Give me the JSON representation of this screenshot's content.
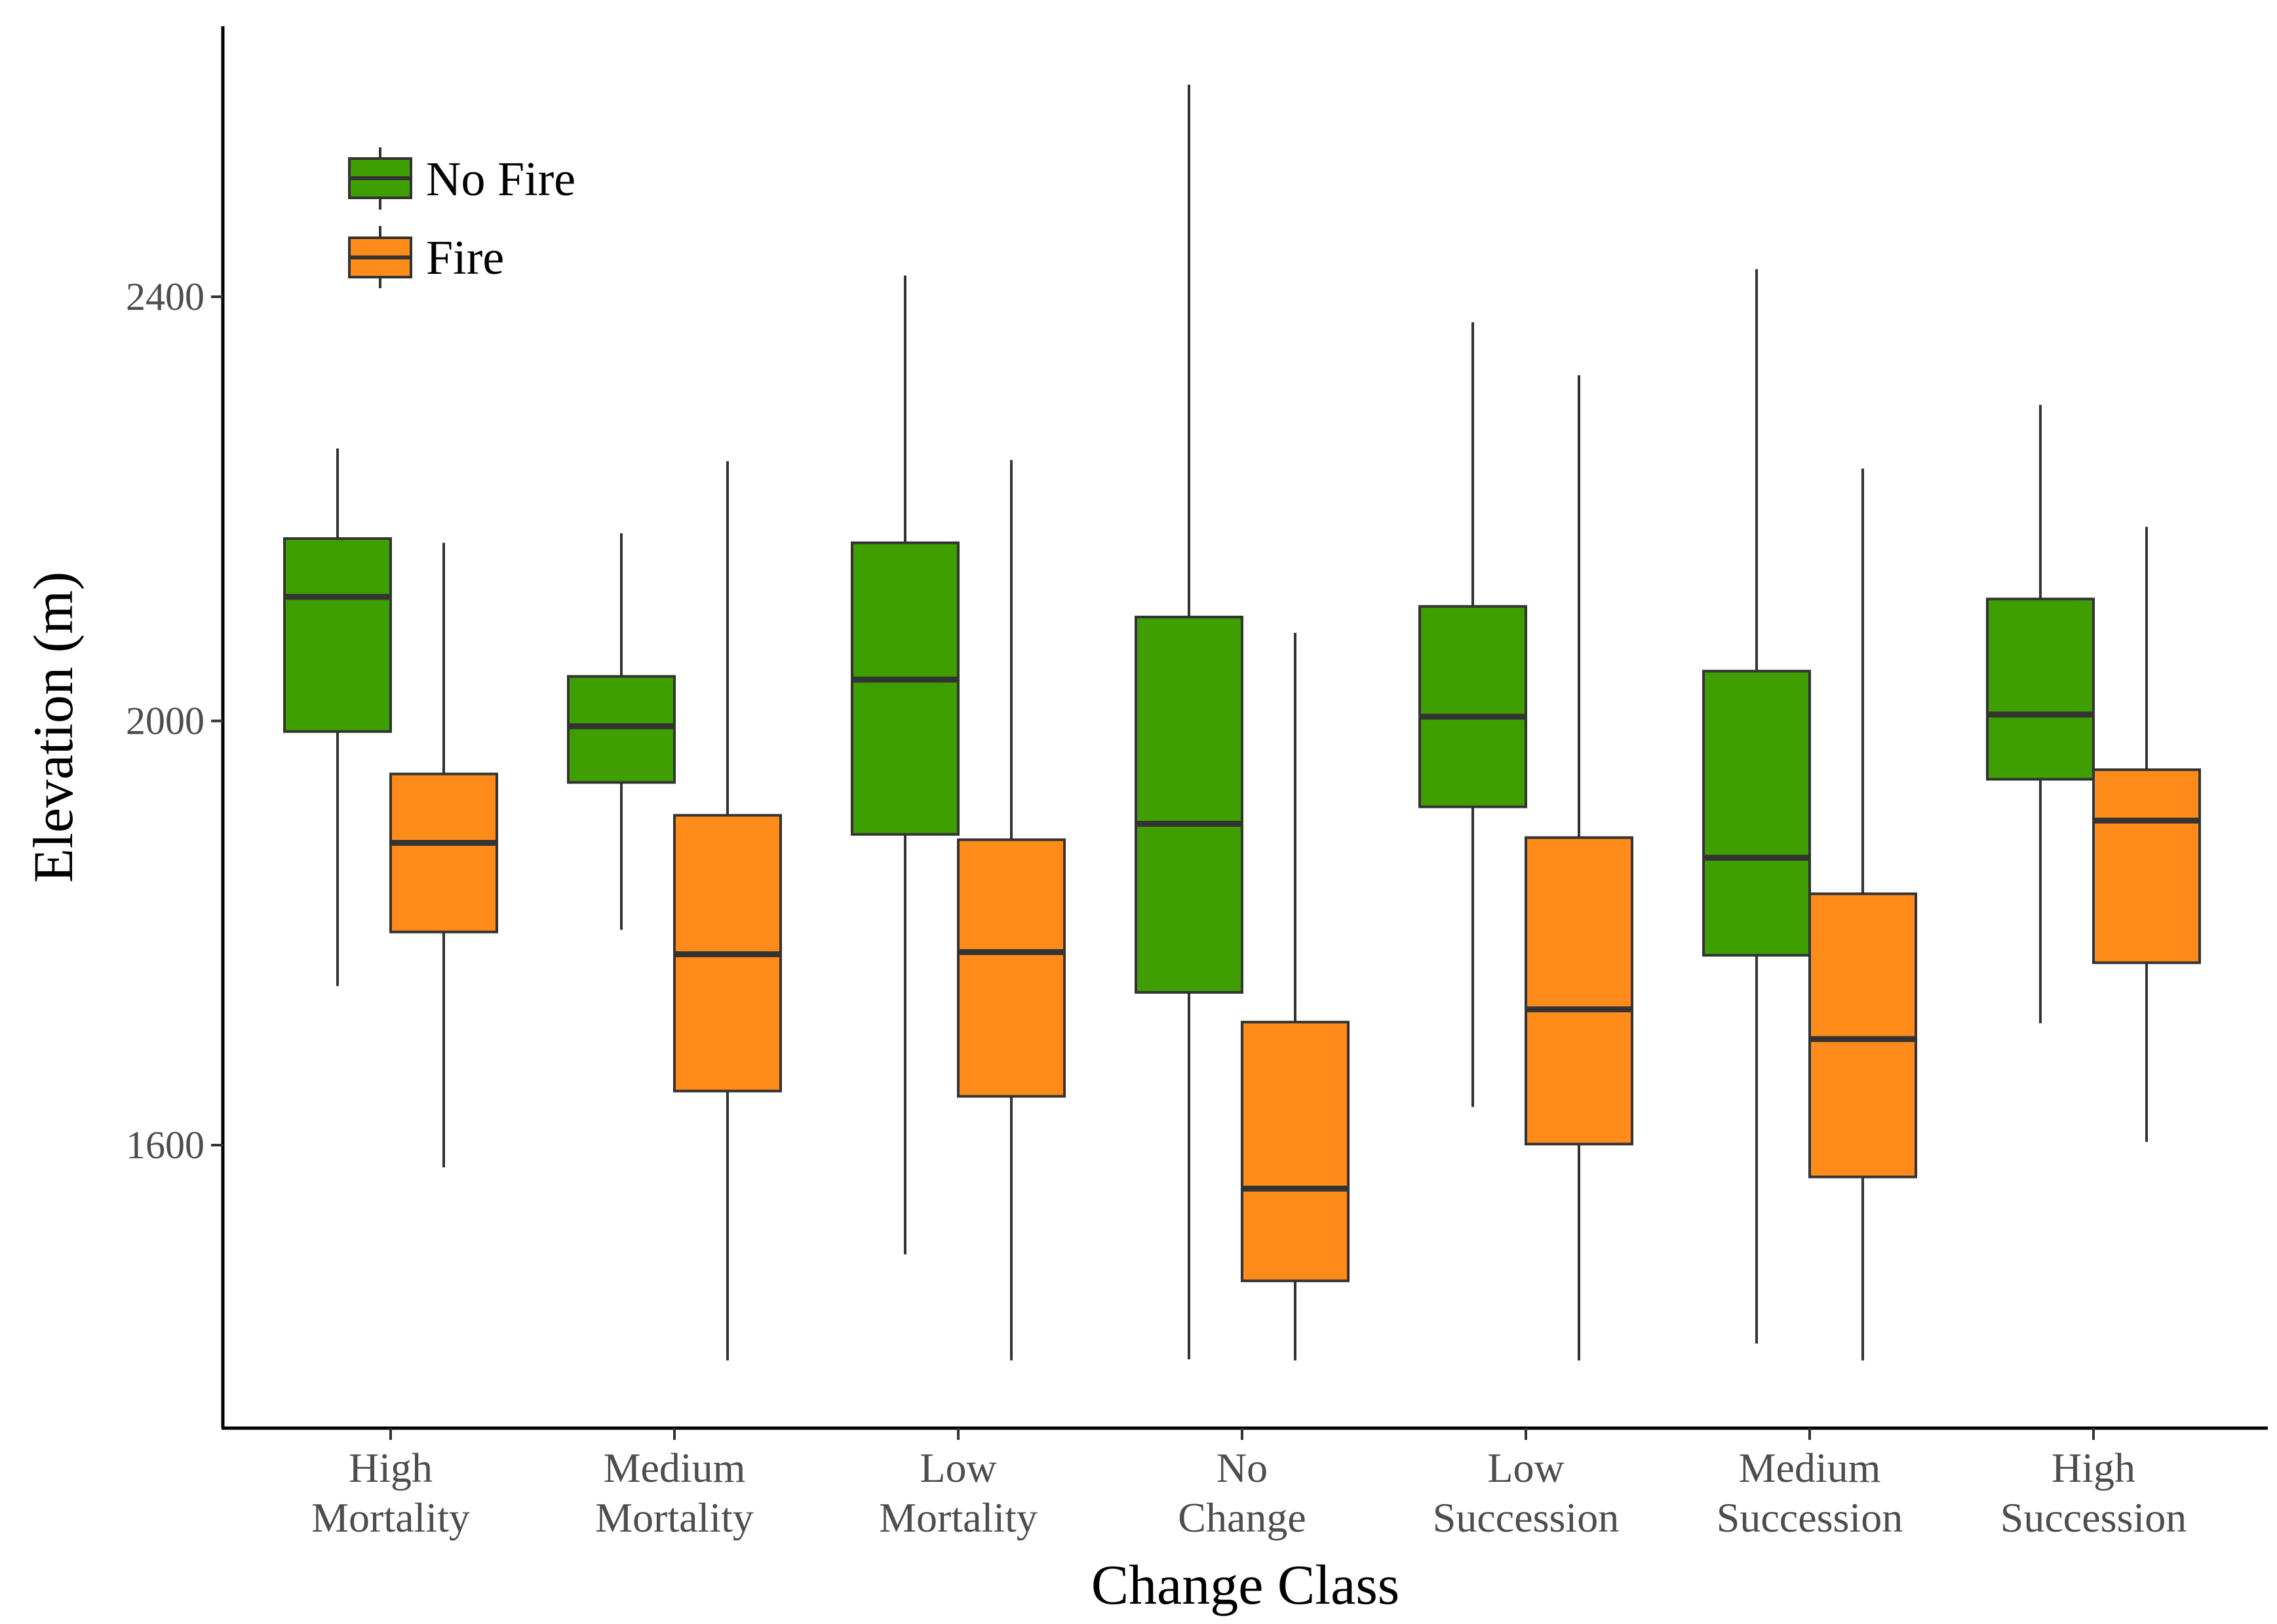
{
  "chart_data": {
    "type": "boxplot",
    "title": "",
    "xlabel": "Change Class",
    "ylabel": "Elevation (m)",
    "ylim": [
      1330,
      2660
    ],
    "yticks": [
      1600,
      2000,
      2400
    ],
    "legend_position": "top-left",
    "categories": [
      {
        "line1": "High",
        "line2": "Mortality"
      },
      {
        "line1": "Medium",
        "line2": "Mortality"
      },
      {
        "line1": "Low",
        "line2": "Mortality"
      },
      {
        "line1": "No",
        "line2": "Change"
      },
      {
        "line1": "Low",
        "line2": "Succession"
      },
      {
        "line1": "Medium",
        "line2": "Succession"
      },
      {
        "line1": "High",
        "line2": "Succession"
      }
    ],
    "series": [
      {
        "name": "No Fire",
        "color": "#3f9e00",
        "boxes": [
          {
            "whisker_low": 1750,
            "q1": 1990,
            "median": 2117,
            "q3": 2172,
            "whisker_high": 2257
          },
          {
            "whisker_low": 1803,
            "q1": 1942,
            "median": 1995,
            "q3": 2042,
            "whisker_high": 2177
          },
          {
            "whisker_low": 1497,
            "q1": 1893,
            "median": 2039,
            "q3": 2168,
            "whisker_high": 2420
          },
          {
            "whisker_low": 1398,
            "q1": 1744,
            "median": 1903,
            "q3": 2098,
            "whisker_high": 2600
          },
          {
            "whisker_low": 1636,
            "q1": 1919,
            "median": 2004,
            "q3": 2108,
            "whisker_high": 2376
          },
          {
            "whisker_low": 1413,
            "q1": 1779,
            "median": 1871,
            "q3": 2047,
            "whisker_high": 2426
          },
          {
            "whisker_low": 1715,
            "q1": 1945,
            "median": 2006,
            "q3": 2115,
            "whisker_high": 2298
          }
        ]
      },
      {
        "name": "Fire",
        "color": "#ff8c1a",
        "boxes": [
          {
            "whisker_low": 1579,
            "q1": 1801,
            "median": 1885,
            "q3": 1950,
            "whisker_high": 2168
          },
          {
            "whisker_low": 1397,
            "q1": 1651,
            "median": 1780,
            "q3": 1911,
            "whisker_high": 2245
          },
          {
            "whisker_low": 1397,
            "q1": 1646,
            "median": 1782,
            "q3": 1888,
            "whisker_high": 2246
          },
          {
            "whisker_low": 1397,
            "q1": 1472,
            "median": 1559,
            "q3": 1716,
            "whisker_high": 2083
          },
          {
            "whisker_low": 1397,
            "q1": 1601,
            "median": 1728,
            "q3": 1890,
            "whisker_high": 2326
          },
          {
            "whisker_low": 1397,
            "q1": 1570,
            "median": 1700,
            "q3": 1837,
            "whisker_high": 2238
          },
          {
            "whisker_low": 1603,
            "q1": 1772,
            "median": 1906,
            "q3": 1954,
            "whisker_high": 2183
          }
        ]
      }
    ]
  }
}
